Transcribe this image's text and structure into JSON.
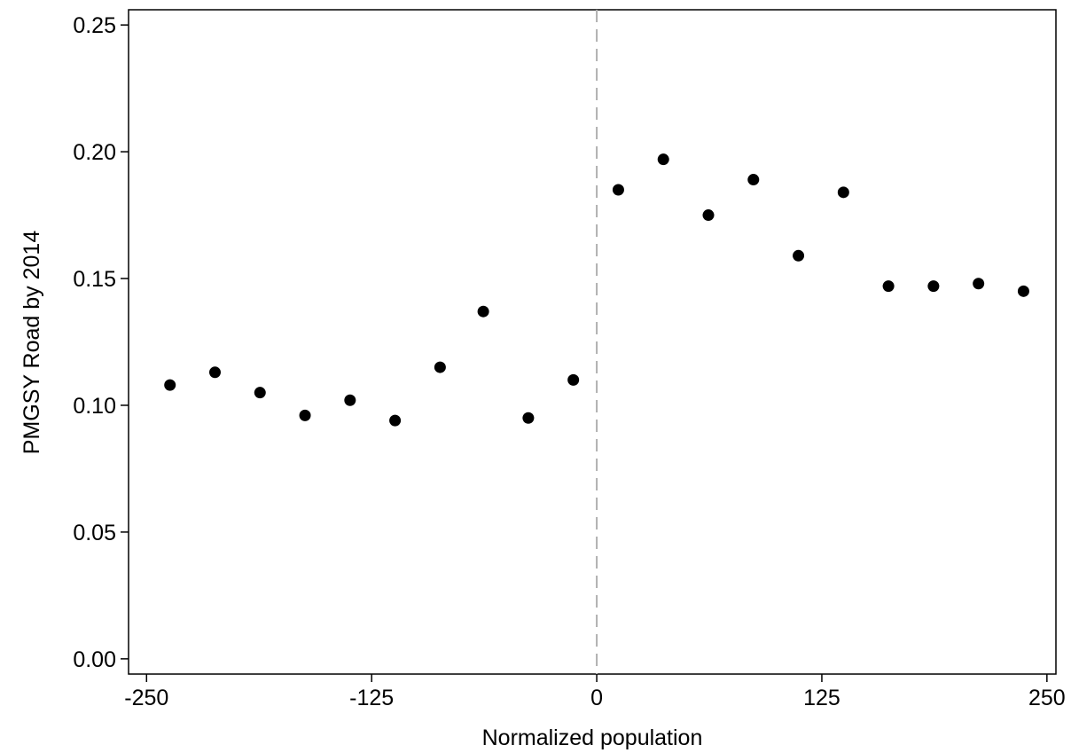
{
  "chart_data": {
    "type": "scatter",
    "title": "",
    "xlabel": "Normalized population",
    "ylabel": "PMGSY Road by 2014",
    "xlim": [
      -260,
      255
    ],
    "ylim": [
      -0.006,
      0.256
    ],
    "xticks": [
      -250,
      -125,
      0,
      125,
      250
    ],
    "xtick_labels": [
      "-250",
      "-125",
      "0",
      "125",
      "250"
    ],
    "yticks": [
      0.0,
      0.05,
      0.1,
      0.15,
      0.2,
      0.25
    ],
    "ytick_labels": [
      "0.00",
      "0.05",
      "0.10",
      "0.15",
      "0.20",
      "0.25"
    ],
    "grid": false,
    "cutoff_line": {
      "x": 0,
      "style": "dashed",
      "color": "#b0b0b0"
    },
    "marker_color": "#000000",
    "series": [
      {
        "x": [
          -237,
          -212,
          -187,
          -162,
          -137,
          -112,
          -87,
          -63,
          -38,
          -13,
          12,
          37,
          62,
          87,
          112,
          137,
          162,
          187,
          212,
          237
        ],
        "y": [
          0.108,
          0.113,
          0.105,
          0.096,
          0.102,
          0.094,
          0.115,
          0.137,
          0.095,
          0.11,
          0.185,
          0.197,
          0.175,
          0.189,
          0.159,
          0.184,
          0.147,
          0.147,
          0.148,
          0.145
        ]
      }
    ]
  }
}
